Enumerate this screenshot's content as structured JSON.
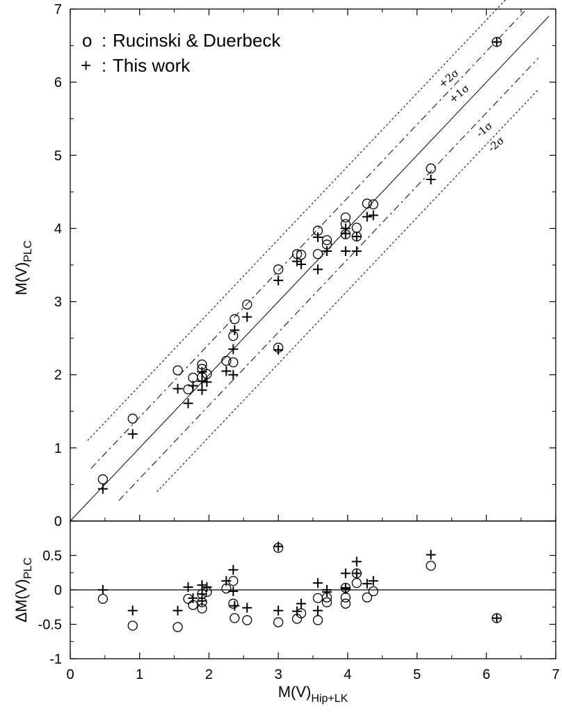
{
  "chart_data": [
    {
      "type": "scatter",
      "panel": "main",
      "xlabel": "M(V)Hip+LK",
      "ylabel": "M(V)PLC",
      "xlim": [
        0,
        7
      ],
      "ylim": [
        0,
        7
      ],
      "x_ticks": [
        "0",
        "1",
        "2",
        "3",
        "4",
        "5",
        "6",
        "7"
      ],
      "y_ticks": [
        "0",
        "1",
        "2",
        "3",
        "4",
        "5",
        "6",
        "7"
      ],
      "legend": {
        "position": "top-left",
        "entries": [
          {
            "marker": "o",
            "sep": ":",
            "label": "Rucinski & Duerbeck"
          },
          {
            "marker": "+",
            "sep": ":",
            "label": "This work"
          }
        ]
      },
      "band_labels": [
        "+2σ",
        "+1σ",
        "-1σ",
        "-2σ"
      ],
      "band_offsets": [
        0.85,
        0.42,
        -0.42,
        -0.85
      ],
      "grid": false,
      "series": [
        {
          "name": "Rucinski & Duerbeck",
          "marker": "circle",
          "points": [
            [
              0.47,
              0.57
            ],
            [
              0.9,
              1.4
            ],
            [
              1.55,
              2.06
            ],
            [
              1.7,
              1.8
            ],
            [
              1.77,
              1.96
            ],
            [
              1.9,
              2.14
            ],
            [
              1.9,
              2.08
            ],
            [
              1.9,
              1.97
            ],
            [
              1.97,
              2.01
            ],
            [
              2.25,
              2.19
            ],
            [
              2.35,
              2.17
            ],
            [
              2.35,
              2.53
            ],
            [
              2.37,
              2.76
            ],
            [
              2.55,
              2.96
            ],
            [
              3.0,
              2.37
            ],
            [
              3.0,
              3.44
            ],
            [
              3.27,
              3.65
            ],
            [
              3.33,
              3.64
            ],
            [
              3.57,
              3.97
            ],
            [
              3.57,
              3.65
            ],
            [
              3.7,
              3.84
            ],
            [
              3.7,
              3.78
            ],
            [
              3.97,
              4.15
            ],
            [
              3.97,
              4.06
            ],
            [
              3.97,
              3.92
            ],
            [
              4.13,
              4.01
            ],
            [
              4.13,
              3.89
            ],
            [
              4.28,
              4.34
            ],
            [
              4.37,
              4.33
            ],
            [
              5.2,
              4.82
            ],
            [
              6.15,
              6.55
            ]
          ]
        },
        {
          "name": "This work",
          "marker": "plus",
          "points": [
            [
              0.47,
              0.44
            ],
            [
              0.9,
              1.19
            ],
            [
              1.55,
              1.81
            ],
            [
              1.7,
              1.61
            ],
            [
              1.77,
              1.85
            ],
            [
              1.9,
              2.04
            ],
            [
              1.9,
              1.91
            ],
            [
              1.9,
              1.79
            ],
            [
              1.97,
              1.9
            ],
            [
              2.25,
              2.05
            ],
            [
              2.35,
              2.0
            ],
            [
              2.35,
              2.35
            ],
            [
              2.37,
              2.61
            ],
            [
              2.55,
              2.79
            ],
            [
              3.0,
              2.34
            ],
            [
              3.0,
              3.29
            ],
            [
              3.27,
              3.55
            ],
            [
              3.33,
              3.51
            ],
            [
              3.57,
              3.88
            ],
            [
              3.57,
              3.44
            ],
            [
              3.7,
              3.69
            ],
            [
              3.7,
              3.69
            ],
            [
              3.97,
              4.0
            ],
            [
              3.97,
              3.93
            ],
            [
              3.97,
              3.69
            ],
            [
              4.13,
              3.89
            ],
            [
              4.13,
              3.69
            ],
            [
              4.28,
              4.16
            ],
            [
              4.37,
              4.18
            ],
            [
              5.2,
              4.67
            ],
            [
              6.15,
              6.55
            ]
          ]
        }
      ]
    },
    {
      "type": "scatter",
      "panel": "residual",
      "xlabel": "M(V)Hip+LK",
      "ylabel": "ΔM(V)PLC",
      "xlim": [
        0,
        7
      ],
      "ylim": [
        -1,
        1
      ],
      "x_ticks": [
        "0",
        "1",
        "2",
        "3",
        "4",
        "5",
        "6",
        "7"
      ],
      "y_ticks": [
        "0.5",
        "0",
        "-0.5",
        "-1"
      ],
      "y_tick_values": [
        0.5,
        0,
        -0.5,
        -1
      ],
      "zero_line": true,
      "grid": false,
      "series": [
        {
          "name": "Rucinski & Duerbeck",
          "marker": "circle",
          "points": [
            [
              0.47,
              -0.13
            ],
            [
              0.9,
              -0.52
            ],
            [
              1.55,
              -0.54
            ],
            [
              1.7,
              -0.13
            ],
            [
              1.77,
              -0.22
            ],
            [
              1.9,
              -0.27
            ],
            [
              1.9,
              -0.18
            ],
            [
              1.9,
              -0.06
            ],
            [
              1.97,
              -0.03
            ],
            [
              2.25,
              0.02
            ],
            [
              2.35,
              0.13
            ],
            [
              2.35,
              -0.2
            ],
            [
              2.37,
              -0.41
            ],
            [
              2.55,
              -0.44
            ],
            [
              3.0,
              0.61
            ],
            [
              3.0,
              -0.47
            ],
            [
              3.27,
              -0.42
            ],
            [
              3.33,
              -0.34
            ],
            [
              3.57,
              -0.12
            ],
            [
              3.57,
              -0.44
            ],
            [
              3.7,
              -0.18
            ],
            [
              3.7,
              -0.11
            ],
            [
              3.97,
              -0.2
            ],
            [
              3.97,
              -0.11
            ],
            [
              3.97,
              0.03
            ],
            [
              4.13,
              0.1
            ],
            [
              4.13,
              0.24
            ],
            [
              4.28,
              -0.11
            ],
            [
              4.37,
              -0.02
            ],
            [
              5.2,
              0.35
            ],
            [
              6.15,
              -0.41
            ]
          ]
        },
        {
          "name": "This work",
          "marker": "plus",
          "points": [
            [
              0.47,
              0.0
            ],
            [
              0.9,
              -0.3
            ],
            [
              1.55,
              -0.3
            ],
            [
              1.7,
              0.04
            ],
            [
              1.77,
              -0.12
            ],
            [
              1.9,
              0.07
            ],
            [
              1.9,
              -0.06
            ],
            [
              1.9,
              -0.16
            ],
            [
              1.97,
              0.04
            ],
            [
              2.25,
              0.13
            ],
            [
              2.35,
              0.29
            ],
            [
              2.35,
              -0.02
            ],
            [
              2.37,
              -0.23
            ],
            [
              2.55,
              -0.26
            ],
            [
              3.0,
              0.63
            ],
            [
              3.0,
              -0.3
            ],
            [
              3.27,
              -0.31
            ],
            [
              3.33,
              -0.2
            ],
            [
              3.57,
              0.1
            ],
            [
              3.57,
              -0.3
            ],
            [
              3.7,
              0.0
            ],
            [
              3.7,
              -0.03
            ],
            [
              3.97,
              0.24
            ],
            [
              3.97,
              0.03
            ],
            [
              3.97,
              0.01
            ],
            [
              4.13,
              0.41
            ],
            [
              4.13,
              0.24
            ],
            [
              4.28,
              0.09
            ],
            [
              4.37,
              0.13
            ],
            [
              5.2,
              0.51
            ],
            [
              6.15,
              -0.41
            ]
          ]
        }
      ]
    }
  ]
}
